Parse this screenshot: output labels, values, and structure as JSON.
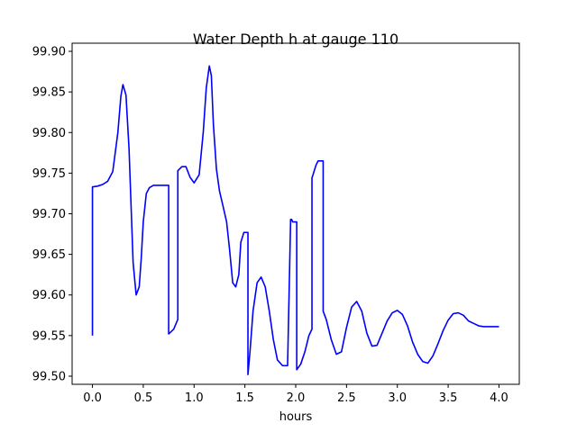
{
  "chart_data": {
    "type": "line",
    "title": "Water Depth h at gauge 110",
    "xlabel": "hours",
    "ylabel": "",
    "xlim": [
      -0.2,
      4.2
    ],
    "ylim": [
      99.49,
      99.91
    ],
    "xticks": [
      0.0,
      0.5,
      1.0,
      1.5,
      2.0,
      2.5,
      3.0,
      3.5,
      4.0
    ],
    "xtick_labels": [
      "0.0",
      "0.5",
      "1.0",
      "1.5",
      "2.0",
      "2.5",
      "3.0",
      "3.5",
      "4.0"
    ],
    "yticks": [
      99.5,
      99.55,
      99.6,
      99.65,
      99.7,
      99.75,
      99.8,
      99.85,
      99.9
    ],
    "ytick_labels": [
      "99.50",
      "99.55",
      "99.60",
      "99.65",
      "99.70",
      "99.75",
      "99.80",
      "99.85",
      "99.90"
    ],
    "grid": false,
    "series": [
      {
        "color": "#0000ff",
        "x": [
          0.0,
          0.0,
          0.05,
          0.1,
          0.15,
          0.2,
          0.25,
          0.28,
          0.3,
          0.33,
          0.36,
          0.38,
          0.4,
          0.43,
          0.46,
          0.48,
          0.5,
          0.53,
          0.56,
          0.6,
          0.65,
          0.68,
          0.71,
          0.73,
          0.74,
          0.75,
          0.75,
          0.8,
          0.84,
          0.84,
          0.88,
          0.92,
          0.96,
          1.0,
          1.05,
          1.09,
          1.12,
          1.15,
          1.17,
          1.19,
          1.22,
          1.25,
          1.28,
          1.32,
          1.35,
          1.38,
          1.41,
          1.44,
          1.46,
          1.49,
          1.52,
          1.53,
          1.53,
          1.55,
          1.58,
          1.62,
          1.66,
          1.7,
          1.74,
          1.78,
          1.82,
          1.87,
          1.92,
          1.95,
          1.96,
          1.97,
          1.97,
          2.0,
          2.01,
          2.01,
          2.05,
          2.09,
          2.13,
          2.16,
          2.16,
          2.18,
          2.2,
          2.22,
          2.24,
          2.26,
          2.27,
          2.27,
          2.3,
          2.35,
          2.4,
          2.45,
          2.5,
          2.55,
          2.6,
          2.65,
          2.7,
          2.75,
          2.8,
          2.85,
          2.9,
          2.95,
          3.0,
          3.05,
          3.1,
          3.15,
          3.2,
          3.25,
          3.3,
          3.35,
          3.4,
          3.45,
          3.5,
          3.55,
          3.6,
          3.65,
          3.7,
          3.75,
          3.8,
          3.85,
          3.9,
          3.95,
          4.0
        ],
        "y": [
          99.55,
          99.733,
          99.734,
          99.736,
          99.74,
          99.752,
          99.8,
          99.845,
          99.859,
          99.846,
          99.78,
          99.71,
          99.64,
          99.6,
          99.61,
          99.645,
          99.69,
          99.725,
          99.732,
          99.735,
          99.735,
          99.735,
          99.735,
          99.735,
          99.735,
          99.735,
          99.552,
          99.558,
          99.57,
          99.753,
          99.758,
          99.758,
          99.745,
          99.738,
          99.748,
          99.8,
          99.855,
          99.882,
          99.87,
          99.81,
          99.755,
          99.728,
          99.712,
          99.69,
          99.655,
          99.615,
          99.61,
          99.625,
          99.665,
          99.677,
          99.677,
          99.677,
          99.502,
          99.53,
          99.58,
          99.615,
          99.622,
          99.61,
          99.58,
          99.545,
          99.52,
          99.513,
          99.513,
          99.693,
          99.693,
          99.69,
          99.69,
          99.69,
          99.69,
          99.508,
          99.515,
          99.53,
          99.55,
          99.558,
          99.744,
          99.752,
          99.76,
          99.765,
          99.765,
          99.765,
          99.765,
          99.58,
          99.57,
          99.545,
          99.527,
          99.53,
          99.56,
          99.585,
          99.592,
          99.58,
          99.553,
          99.537,
          99.538,
          99.553,
          99.568,
          99.578,
          99.581,
          99.576,
          99.562,
          99.542,
          99.527,
          99.518,
          99.516,
          99.525,
          99.54,
          99.556,
          99.569,
          99.577,
          99.578,
          99.575,
          99.568,
          99.565,
          99.562,
          99.561,
          99.561,
          99.561,
          99.561
        ]
      }
    ]
  }
}
